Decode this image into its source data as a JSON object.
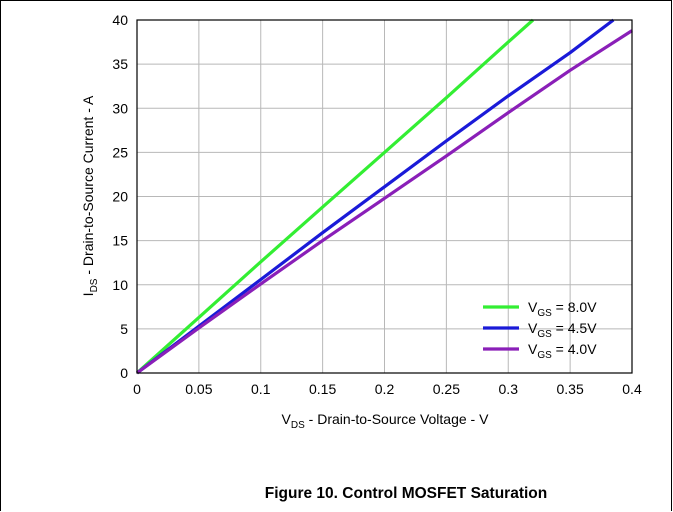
{
  "chart_data": {
    "type": "line",
    "title": "",
    "caption": "Figure 10. Control MOSFET Saturation",
    "xlabel": {
      "main": "V",
      "sub": "DS",
      "rest": " - Drain-to-Source Voltage - V"
    },
    "ylabel": {
      "main": "I",
      "sub": "DS",
      "rest": " - Drain-to-Source Current - A"
    },
    "xlim": [
      0,
      0.4
    ],
    "ylim": [
      0,
      40
    ],
    "xticks": [
      "0",
      "0.05",
      "0.1",
      "0.15",
      "0.2",
      "0.25",
      "0.3",
      "0.35",
      "0.4"
    ],
    "yticks": [
      "0",
      "5",
      "10",
      "15",
      "20",
      "25",
      "30",
      "35",
      "40"
    ],
    "grid": true,
    "legend_position": "bottom-right",
    "series": [
      {
        "name": "V_GS = 8.0V",
        "label_main": "V",
        "label_sub": "GS",
        "label_rest": " = 8.0V",
        "color": "#33ee33",
        "x": [
          0,
          0.05,
          0.1,
          0.15,
          0.2,
          0.25,
          0.3,
          0.32
        ],
        "y": [
          0,
          6.3,
          12.6,
          18.8,
          25.0,
          31.2,
          37.5,
          40.0
        ]
      },
      {
        "name": "V_GS = 4.5V",
        "label_main": "V",
        "label_sub": "GS",
        "label_rest": " = 4.5V",
        "color": "#1a1ad8",
        "x": [
          0,
          0.05,
          0.1,
          0.15,
          0.2,
          0.25,
          0.3,
          0.35,
          0.385
        ],
        "y": [
          0,
          5.3,
          10.6,
          15.9,
          21.1,
          26.3,
          31.4,
          36.3,
          40.0
        ]
      },
      {
        "name": "V_GS = 4.0V",
        "label_main": "V",
        "label_sub": "GS",
        "label_rest": " = 4.0V",
        "color": "#8a1fb8",
        "x": [
          0,
          0.05,
          0.1,
          0.15,
          0.2,
          0.25,
          0.3,
          0.35,
          0.4
        ],
        "y": [
          0,
          5.1,
          10.1,
          15.0,
          19.8,
          24.6,
          29.5,
          34.3,
          38.8
        ]
      }
    ]
  }
}
